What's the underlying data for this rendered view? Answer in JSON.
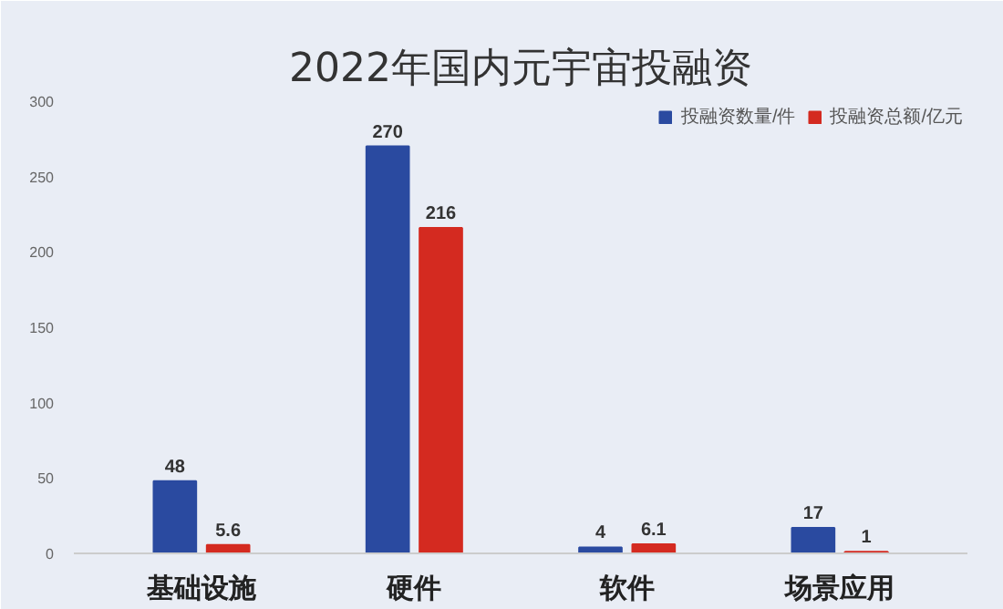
{
  "chart_data": {
    "type": "bar",
    "title": "2022年国内元宇宙投融资",
    "categories": [
      "基础设施",
      "硬件",
      "软件",
      "场景应用"
    ],
    "series": [
      {
        "name": "投融资数量/件",
        "color": "#2a4aa0",
        "values": [
          48,
          270,
          4,
          17
        ]
      },
      {
        "name": "投融资总额/亿元",
        "color": "#d42a20",
        "values": [
          5.6,
          216,
          6.1,
          1
        ]
      }
    ],
    "ylim": [
      0,
      300
    ],
    "yticks": [
      0,
      50,
      100,
      150,
      200,
      250,
      300
    ],
    "grid": false,
    "legend": "top right",
    "data_labels": true
  }
}
